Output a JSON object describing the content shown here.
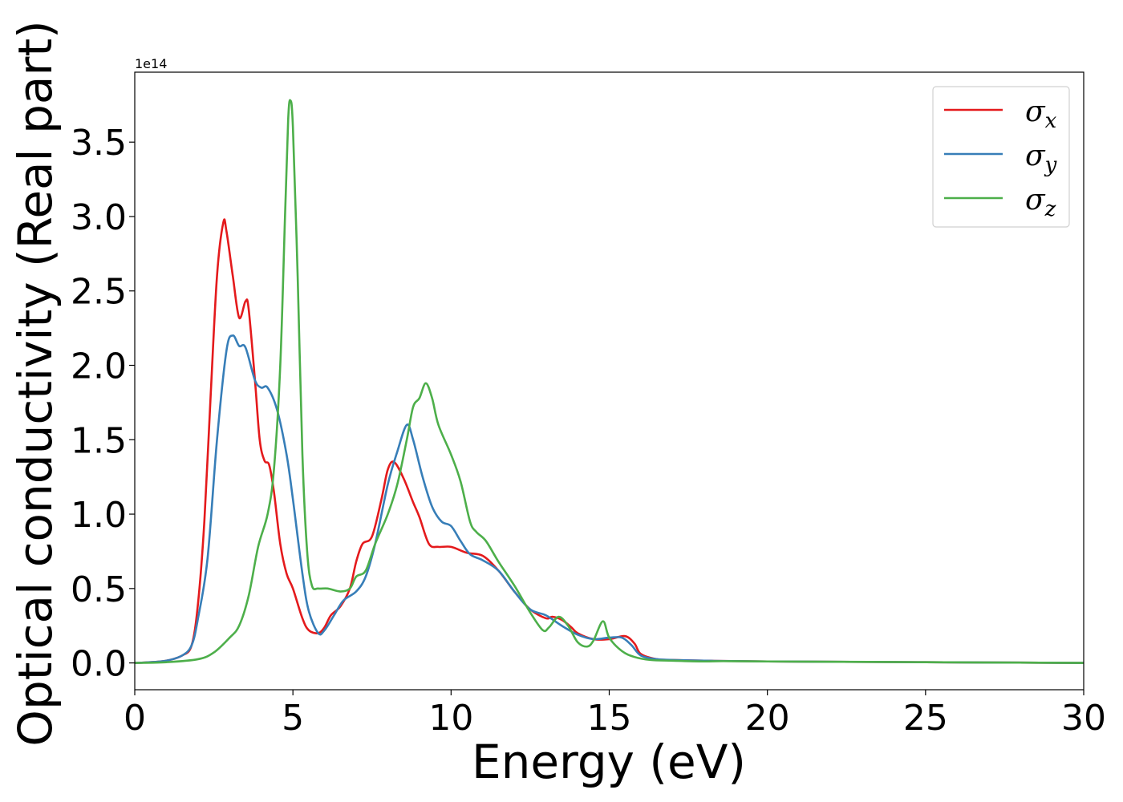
{
  "chart_data": {
    "type": "line",
    "xlabel": "Energy (eV)",
    "ylabel": "Optical conductivity (Real part)",
    "y_offset_text": "1e14",
    "y_scale": 100000000000000.0,
    "xlim": [
      0,
      30
    ],
    "ylim": [
      -0.18,
      3.97
    ],
    "x_ticks": [
      0,
      5,
      10,
      15,
      20,
      25,
      30
    ],
    "x_tick_labels": [
      "0",
      "5",
      "10",
      "15",
      "20",
      "25",
      "30"
    ],
    "y_ticks": [
      0.0,
      0.5,
      1.0,
      1.5,
      2.0,
      2.5,
      3.0,
      3.5
    ],
    "y_tick_labels": [
      "0.0",
      "0.5",
      "1.0",
      "1.5",
      "2.0",
      "2.5",
      "3.0",
      "3.5"
    ],
    "grid": false,
    "legend_position": "top-right",
    "series": [
      {
        "name": "σx",
        "legend_base": "σ",
        "legend_sub": "x",
        "color": "#e41a1c",
        "points": [
          [
            0,
            0
          ],
          [
            0.5,
            0.005
          ],
          [
            1.0,
            0.015
          ],
          [
            1.5,
            0.05
          ],
          [
            1.8,
            0.12
          ],
          [
            2.0,
            0.4
          ],
          [
            2.2,
            0.95
          ],
          [
            2.4,
            1.8
          ],
          [
            2.6,
            2.6
          ],
          [
            2.8,
            2.96
          ],
          [
            2.9,
            2.9
          ],
          [
            3.1,
            2.6
          ],
          [
            3.3,
            2.32
          ],
          [
            3.5,
            2.43
          ],
          [
            3.6,
            2.38
          ],
          [
            3.8,
            1.9
          ],
          [
            3.95,
            1.5
          ],
          [
            4.1,
            1.36
          ],
          [
            4.25,
            1.33
          ],
          [
            4.4,
            1.15
          ],
          [
            4.6,
            0.8
          ],
          [
            4.8,
            0.6
          ],
          [
            5.0,
            0.5
          ],
          [
            5.3,
            0.3
          ],
          [
            5.5,
            0.22
          ],
          [
            5.8,
            0.2
          ],
          [
            6.0,
            0.24
          ],
          [
            6.2,
            0.32
          ],
          [
            6.5,
            0.38
          ],
          [
            6.8,
            0.5
          ],
          [
            7.0,
            0.68
          ],
          [
            7.2,
            0.8
          ],
          [
            7.5,
            0.85
          ],
          [
            7.8,
            1.1
          ],
          [
            8.0,
            1.3
          ],
          [
            8.2,
            1.35
          ],
          [
            8.5,
            1.24
          ],
          [
            8.8,
            1.08
          ],
          [
            9.0,
            0.98
          ],
          [
            9.3,
            0.8
          ],
          [
            9.6,
            0.78
          ],
          [
            10.0,
            0.78
          ],
          [
            10.5,
            0.74
          ],
          [
            11.0,
            0.72
          ],
          [
            11.5,
            0.62
          ],
          [
            12.0,
            0.48
          ],
          [
            12.5,
            0.36
          ],
          [
            13.0,
            0.3
          ],
          [
            13.2,
            0.31
          ],
          [
            13.5,
            0.29
          ],
          [
            13.8,
            0.24
          ],
          [
            14.0,
            0.2
          ],
          [
            14.5,
            0.16
          ],
          [
            15.0,
            0.16
          ],
          [
            15.5,
            0.18
          ],
          [
            15.8,
            0.13
          ],
          [
            16.0,
            0.06
          ],
          [
            16.5,
            0.025
          ],
          [
            17.0,
            0.02
          ],
          [
            18.0,
            0.015
          ],
          [
            20.0,
            0.01
          ],
          [
            25.0,
            0.005
          ],
          [
            30.0,
            0.0
          ]
        ]
      },
      {
        "name": "σy",
        "legend_base": "σ",
        "legend_sub": "y",
        "color": "#377eb8",
        "points": [
          [
            0,
            0
          ],
          [
            0.5,
            0.005
          ],
          [
            1.0,
            0.015
          ],
          [
            1.5,
            0.05
          ],
          [
            1.8,
            0.12
          ],
          [
            2.0,
            0.3
          ],
          [
            2.3,
            0.7
          ],
          [
            2.6,
            1.5
          ],
          [
            2.9,
            2.1
          ],
          [
            3.1,
            2.2
          ],
          [
            3.3,
            2.13
          ],
          [
            3.5,
            2.12
          ],
          [
            3.8,
            1.9
          ],
          [
            4.0,
            1.85
          ],
          [
            4.2,
            1.85
          ],
          [
            4.5,
            1.7
          ],
          [
            4.8,
            1.4
          ],
          [
            5.0,
            1.1
          ],
          [
            5.3,
            0.6
          ],
          [
            5.5,
            0.35
          ],
          [
            5.8,
            0.2
          ],
          [
            6.0,
            0.22
          ],
          [
            6.3,
            0.32
          ],
          [
            6.6,
            0.42
          ],
          [
            7.0,
            0.48
          ],
          [
            7.3,
            0.58
          ],
          [
            7.6,
            0.8
          ],
          [
            8.0,
            1.2
          ],
          [
            8.3,
            1.42
          ],
          [
            8.6,
            1.6
          ],
          [
            8.8,
            1.5
          ],
          [
            9.1,
            1.25
          ],
          [
            9.4,
            1.05
          ],
          [
            9.7,
            0.95
          ],
          [
            10.0,
            0.92
          ],
          [
            10.3,
            0.82
          ],
          [
            10.6,
            0.73
          ],
          [
            11.0,
            0.69
          ],
          [
            11.5,
            0.62
          ],
          [
            12.0,
            0.48
          ],
          [
            12.5,
            0.36
          ],
          [
            13.0,
            0.32
          ],
          [
            13.5,
            0.25
          ],
          [
            14.0,
            0.19
          ],
          [
            14.5,
            0.16
          ],
          [
            15.0,
            0.17
          ],
          [
            15.4,
            0.17
          ],
          [
            15.7,
            0.12
          ],
          [
            16.0,
            0.05
          ],
          [
            16.5,
            0.025
          ],
          [
            17.0,
            0.02
          ],
          [
            18.0,
            0.015
          ],
          [
            20.0,
            0.01
          ],
          [
            25.0,
            0.005
          ],
          [
            30.0,
            0.0
          ]
        ]
      },
      {
        "name": "σz",
        "legend_base": "σ",
        "legend_sub": "z",
        "color": "#4daf4a",
        "points": [
          [
            0,
            0
          ],
          [
            1.0,
            0.005
          ],
          [
            2.0,
            0.025
          ],
          [
            2.5,
            0.07
          ],
          [
            3.0,
            0.17
          ],
          [
            3.3,
            0.25
          ],
          [
            3.6,
            0.45
          ],
          [
            3.9,
            0.78
          ],
          [
            4.2,
            1.0
          ],
          [
            4.4,
            1.3
          ],
          [
            4.6,
            2.0
          ],
          [
            4.75,
            3.0
          ],
          [
            4.85,
            3.65
          ],
          [
            4.92,
            3.78
          ],
          [
            5.0,
            3.6
          ],
          [
            5.15,
            2.6
          ],
          [
            5.3,
            1.4
          ],
          [
            5.45,
            0.75
          ],
          [
            5.6,
            0.52
          ],
          [
            5.8,
            0.5
          ],
          [
            6.1,
            0.5
          ],
          [
            6.5,
            0.48
          ],
          [
            6.8,
            0.5
          ],
          [
            7.0,
            0.58
          ],
          [
            7.3,
            0.62
          ],
          [
            7.6,
            0.8
          ],
          [
            8.0,
            1.0
          ],
          [
            8.3,
            1.2
          ],
          [
            8.6,
            1.5
          ],
          [
            8.8,
            1.72
          ],
          [
            9.0,
            1.78
          ],
          [
            9.2,
            1.88
          ],
          [
            9.4,
            1.78
          ],
          [
            9.6,
            1.6
          ],
          [
            10.0,
            1.4
          ],
          [
            10.3,
            1.22
          ],
          [
            10.6,
            0.95
          ],
          [
            10.8,
            0.88
          ],
          [
            11.1,
            0.82
          ],
          [
            11.5,
            0.68
          ],
          [
            12.0,
            0.52
          ],
          [
            12.5,
            0.34
          ],
          [
            12.9,
            0.22
          ],
          [
            13.1,
            0.24
          ],
          [
            13.4,
            0.31
          ],
          [
            13.7,
            0.25
          ],
          [
            14.0,
            0.14
          ],
          [
            14.3,
            0.11
          ],
          [
            14.5,
            0.15
          ],
          [
            14.8,
            0.28
          ],
          [
            15.0,
            0.17
          ],
          [
            15.4,
            0.08
          ],
          [
            15.8,
            0.04
          ],
          [
            16.3,
            0.02
          ],
          [
            17.0,
            0.015
          ],
          [
            18.0,
            0.01
          ],
          [
            18.6,
            0.012
          ],
          [
            20.0,
            0.01
          ],
          [
            25.0,
            0.005
          ],
          [
            30.0,
            0.0
          ]
        ]
      }
    ]
  }
}
